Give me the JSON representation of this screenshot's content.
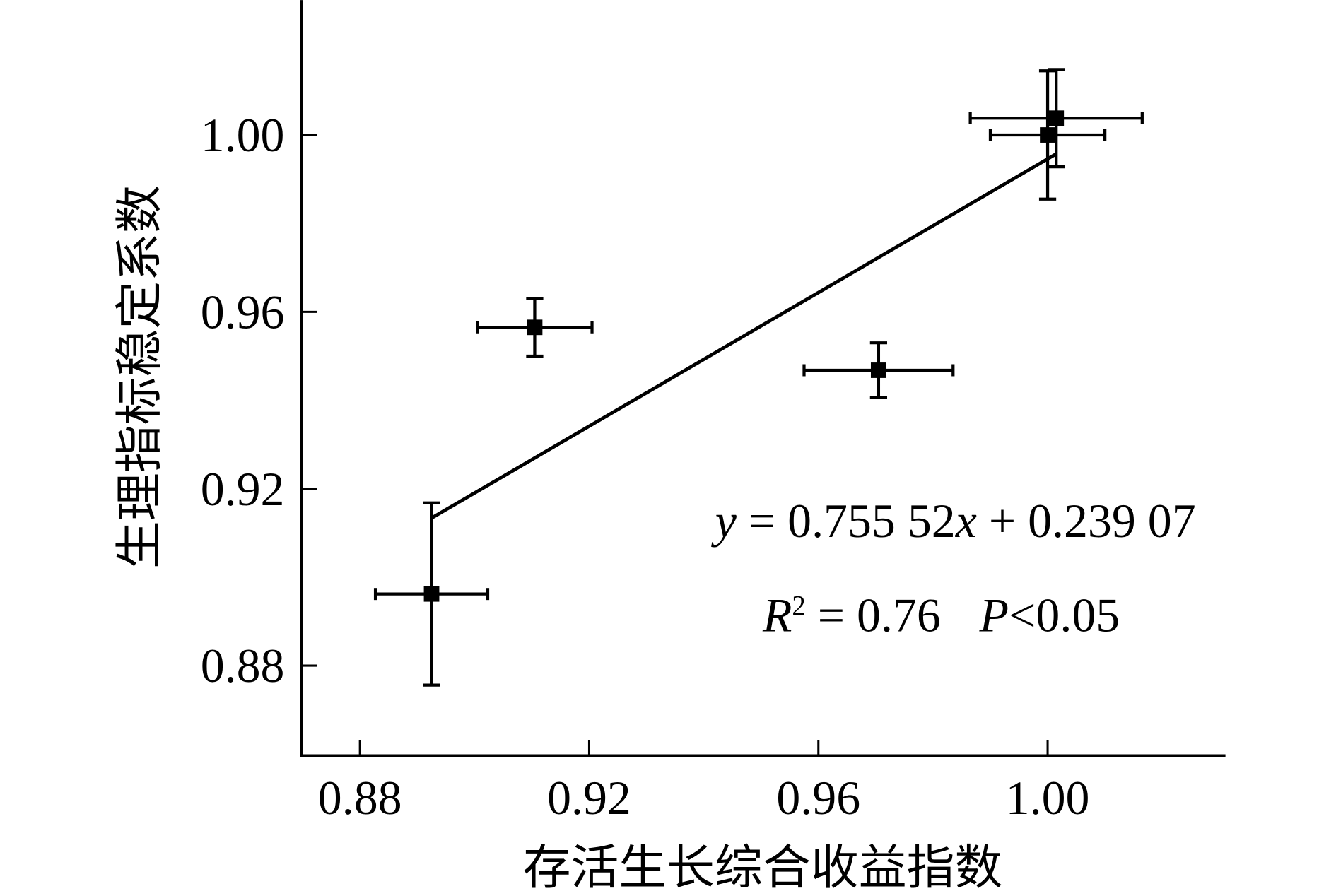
{
  "chart_data": {
    "type": "scatter",
    "xlabel": "存活生长综合收益指数",
    "ylabel": "生理指标稳定系数",
    "xlim": [
      0.87,
      1.03
    ],
    "ylim": [
      0.86,
      1.03
    ],
    "x_ticks": [
      0.88,
      0.92,
      0.96,
      1.0
    ],
    "x_tick_labels": [
      "0.88",
      "0.92",
      "0.96",
      "1.00"
    ],
    "y_ticks": [
      0.88,
      0.92,
      0.96,
      1.0
    ],
    "y_tick_labels": [
      "0.88",
      "0.92",
      "0.96",
      "1.00"
    ],
    "grid": false,
    "points": [
      {
        "x": 0.8925,
        "y": 0.8962,
        "x_err": 0.0098,
        "y_err": 0.0206
      },
      {
        "x": 0.9105,
        "y": 0.9565,
        "x_err": 0.01,
        "y_err": 0.0065
      },
      {
        "x": 0.9705,
        "y": 0.9468,
        "x_err": 0.013,
        "y_err": 0.0062
      },
      {
        "x": 1.0,
        "y": 1.0,
        "x_err": 0.01,
        "y_err": 0.0145
      },
      {
        "x": 1.0015,
        "y": 1.0038,
        "x_err": 0.015,
        "y_err": 0.011
      }
    ],
    "fit_line": {
      "slope": 0.75552,
      "intercept": 0.23907,
      "x_range": [
        0.8925,
        1.0015
      ]
    },
    "annotations": {
      "eq_y": "y",
      "eq_mid": " = 0.755 52",
      "eq_x": "x",
      "eq_end": " + 0.239 07",
      "r_label": "R",
      "r_sup": "2",
      "r_value": " = 0.76",
      "p_label": "P",
      "p_value": "<0.05"
    }
  }
}
